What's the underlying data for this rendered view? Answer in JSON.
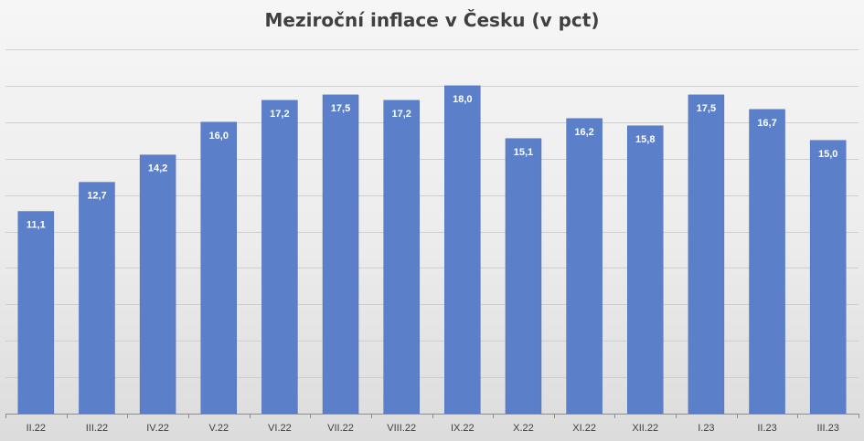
{
  "title": "Meziroční inflace v Česku (v pct)",
  "colors": {
    "bar": "#5b80c9",
    "bar_edge": "#4a6fb8",
    "grid": "#cfcfcf",
    "axis": "#8c8c8c",
    "label": "#ffffff",
    "tick": "#404040"
  },
  "chart_data": {
    "type": "bar",
    "title": "Meziroční inflace v Česku (v pct)",
    "categories": [
      "II.22",
      "III.22",
      "IV.22",
      "V.22",
      "VI.22",
      "VII.22",
      "VIII.22",
      "IX.22",
      "X.22",
      "XI.22",
      "XII.22",
      "I.23",
      "II.23",
      "III.23"
    ],
    "values": [
      11.1,
      12.7,
      14.2,
      16.0,
      17.2,
      17.5,
      17.2,
      18.0,
      15.1,
      16.2,
      15.8,
      17.5,
      16.7,
      15.0
    ],
    "data_labels": [
      "11,1",
      "12,7",
      "14,2",
      "16,0",
      "17,2",
      "17,5",
      "17,2",
      "18,0",
      "15,1",
      "16,2",
      "15,8",
      "17,5",
      "16,7",
      "15,0"
    ],
    "xlabel": "",
    "ylabel": "",
    "ylim": [
      0,
      20
    ],
    "grid": true,
    "legend": "none"
  }
}
